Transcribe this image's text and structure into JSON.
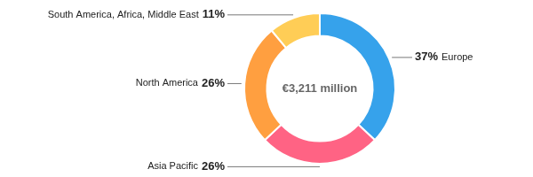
{
  "chart_data": {
    "type": "doughnut",
    "title": "€3,211 million",
    "categories": [
      "Europe",
      "Asia Pacific",
      "North America",
      "South America, Africa, Middle East"
    ],
    "values": [
      37,
      26,
      26,
      11
    ],
    "value_labels": [
      "37%",
      "26%",
      "26%",
      "11%"
    ],
    "data_labels": true
  }
}
